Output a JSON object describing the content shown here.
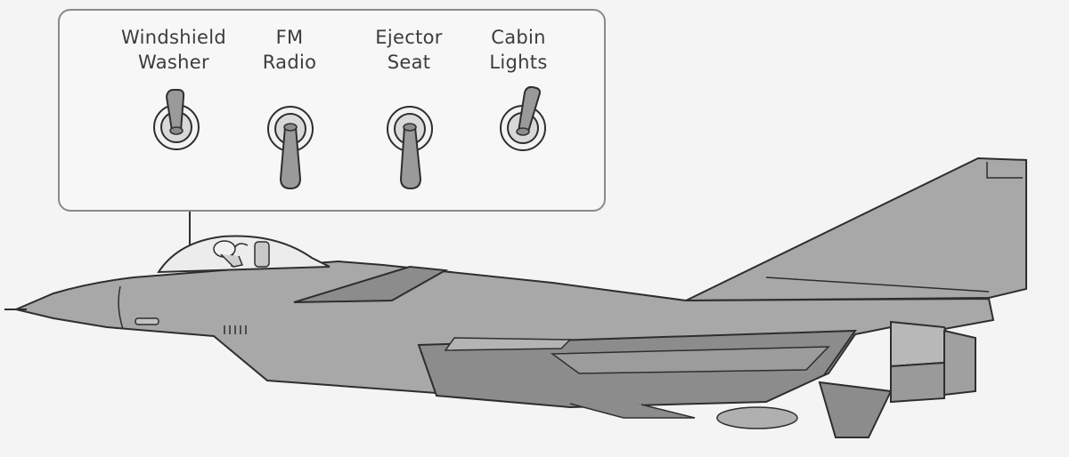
{
  "switches": [
    {
      "id": "windshield-washer",
      "line1": "Windshield",
      "line2": "Washer",
      "state": "up"
    },
    {
      "id": "fm-radio",
      "line1": "FM",
      "line2": "Radio",
      "state": "down"
    },
    {
      "id": "ejector-seat",
      "line1": "Ejector",
      "line2": "Seat",
      "state": "down"
    },
    {
      "id": "cabin-lights",
      "line1": "Cabin",
      "line2": "Lights",
      "state": "up"
    }
  ],
  "colors": {
    "fuselage": "#a8a8a8",
    "fuselage_dark": "#8c8c8c",
    "outline": "#2e2e2e",
    "toggle_lever": "#9a9a9a",
    "panel_border": "#8a8a8a"
  }
}
